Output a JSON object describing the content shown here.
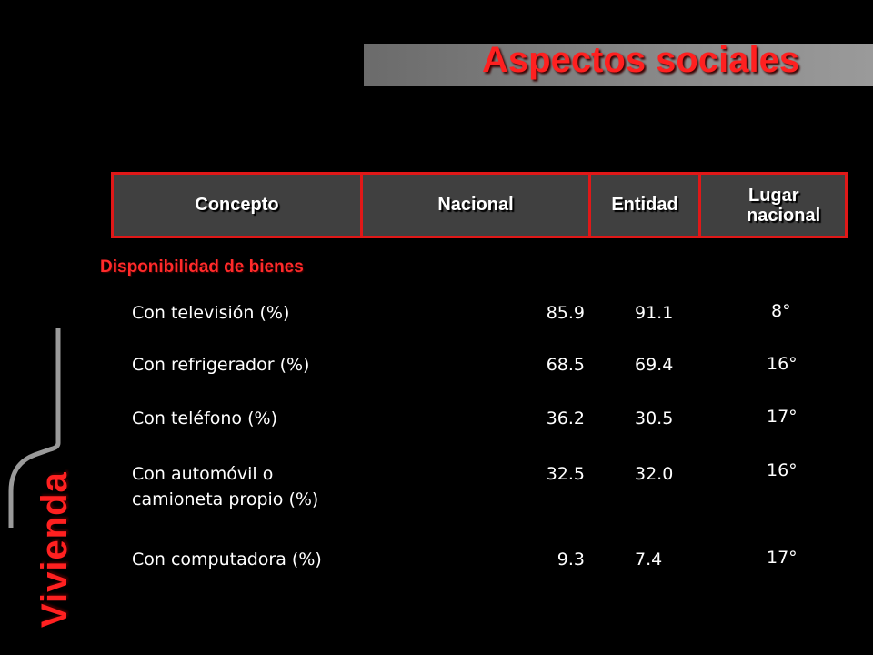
{
  "title": "Aspectos sociales",
  "side_label": "Vivienda",
  "table": {
    "headers": {
      "concepto": "Concepto",
      "nacional": "Nacional",
      "entidad": "Entidad",
      "lugar_line1": "Lugar",
      "lugar_line2": "nacional"
    },
    "section": "Disponibilidad de bienes",
    "rows": [
      {
        "concepto": "Con televisión (%)",
        "nacional": "85.9",
        "entidad": "91.1",
        "lugar": "8°"
      },
      {
        "concepto": "Con refrigerador (%)",
        "nacional": "68.5",
        "entidad": "69.4",
        "lugar": "16°"
      },
      {
        "concepto": "Con teléfono (%)",
        "nacional": "36.2",
        "entidad": "30.5",
        "lugar": "17°"
      },
      {
        "concepto_line1": "Con automóvil o",
        "concepto_line2": "camioneta propio (%)",
        "nacional": "32.5",
        "entidad": "32.0",
        "lugar": "16°"
      },
      {
        "concepto": "Con computadora (%)",
        "nacional": "9.3",
        "entidad": "7.4",
        "lugar": "17°"
      }
    ]
  },
  "colors": {
    "accent_red": "#ff2020",
    "header_bg": "#404040",
    "border_red": "#e01818"
  }
}
